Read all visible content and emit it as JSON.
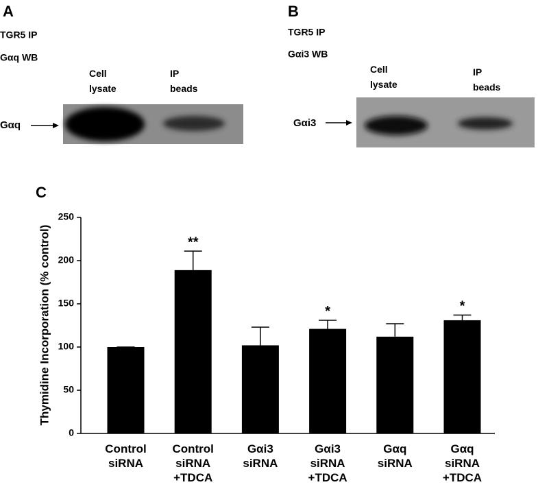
{
  "panels": [
    {
      "letter": "A",
      "lines": [
        "TGR5 IP",
        "Gαq WB"
      ],
      "lanes": [
        "Cell\nlysate",
        "IP\nbeads"
      ],
      "target": "Gαq"
    },
    {
      "letter": "B",
      "lines": [
        "TGR5 IP",
        "Gαi3 WB"
      ],
      "lanes": [
        "Cell\nlysate",
        "IP\nbeads"
      ],
      "target": "Gαi3"
    }
  ],
  "chart_data": {
    "type": "bar",
    "letter": "C",
    "y_label": "Thymidine Incorporation (% control)",
    "categories": [
      "Control\nsiRNA",
      "Control\nsiRNA\n+TDCA",
      "Gαi3\nsiRNA",
      "Gαi3\nsiRNA\n+TDCA",
      "Gαq\nsiRNA",
      "Gαq\nsiRNA\n+TDCA"
    ],
    "values": [
      100,
      189,
      102,
      121,
      112,
      131
    ],
    "errors": [
      0,
      22,
      21,
      10,
      15,
      6
    ],
    "significance": [
      null,
      "**",
      null,
      "*",
      null,
      "*"
    ],
    "color": "#000000",
    "ylim": [
      0,
      250
    ],
    "yticks": [
      0,
      50,
      100,
      150,
      200,
      250
    ]
  }
}
